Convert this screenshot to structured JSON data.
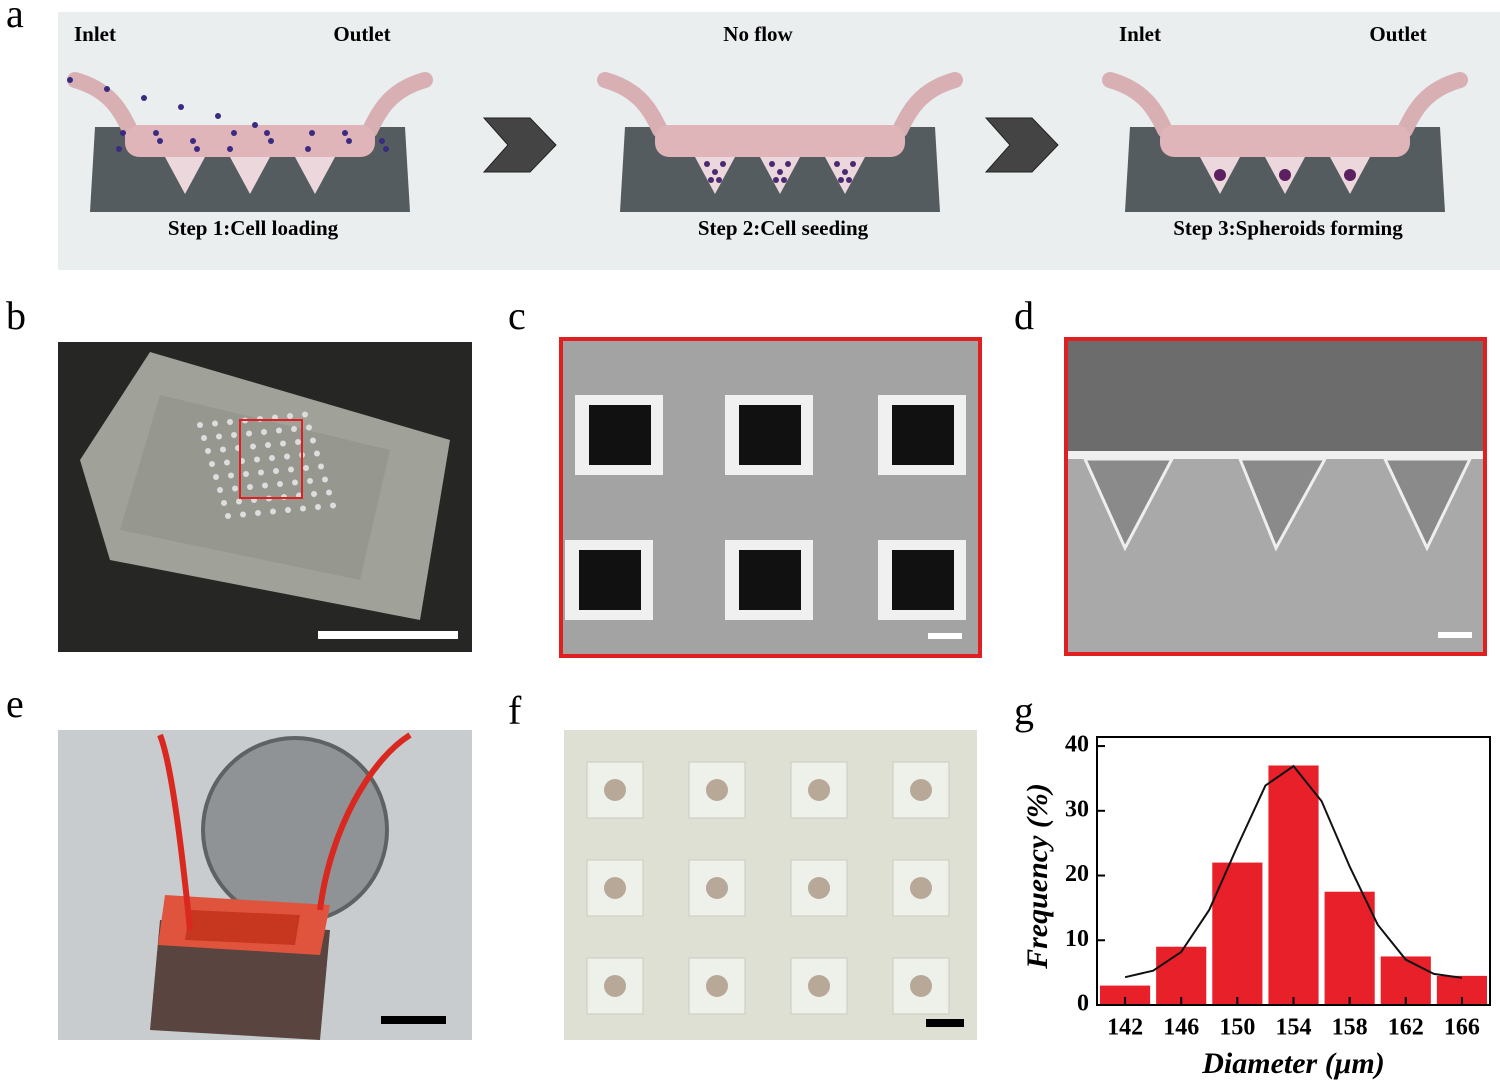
{
  "panel_labels": [
    "a",
    "b",
    "c",
    "d",
    "e",
    "f",
    "g"
  ],
  "steps": [
    {
      "labels": [
        "Inlet",
        "Outlet"
      ],
      "caption": "Step 1:Cell loading"
    },
    {
      "labels": [
        "No flow"
      ],
      "caption": "Step 2:Cell seeding"
    },
    {
      "labels": [
        "Inlet",
        "Outlet"
      ],
      "caption": "Step 3:Spheroids forming"
    }
  ],
  "chart_data": {
    "type": "histogram",
    "x_label": "Diameter (μm)",
    "y_label": "Frequency (%)",
    "bins": [
      140,
      144,
      148,
      152,
      156,
      160,
      164,
      168
    ],
    "values": [
      3,
      9,
      22,
      37,
      17.5,
      7.5,
      4.5
    ],
    "color": "#e8202a",
    "fit": {
      "x": [
        142,
        144,
        146,
        148,
        150,
        152,
        154,
        156,
        158,
        160,
        162,
        164,
        166
      ],
      "values": [
        4.3,
        5.3,
        8.2,
        14.7,
        24.5,
        33.9,
        36.9,
        31.5,
        21.4,
        12.4,
        7.0,
        4.8,
        4.2
      ]
    },
    "xlim": [
      140,
      168
    ],
    "xticks": [
      142,
      146,
      150,
      154,
      158,
      162,
      166
    ],
    "ylim": [
      0,
      41.4
    ],
    "yticks": [
      0,
      10,
      20,
      30,
      40
    ]
  }
}
